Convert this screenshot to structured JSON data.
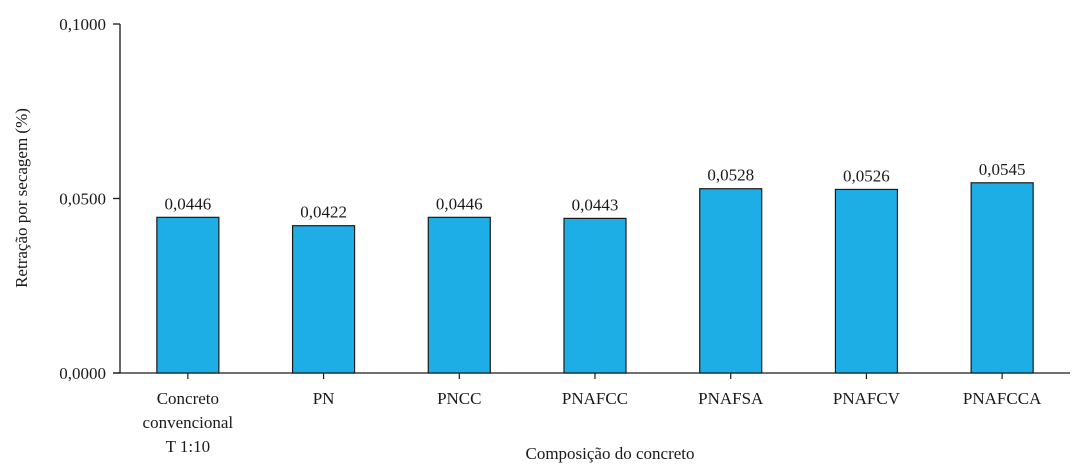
{
  "chart_data": {
    "type": "bar",
    "title": "",
    "xlabel": "Composição do concreto",
    "ylabel": "Retração por secagem (%)",
    "ylim": [
      0,
      0.1
    ],
    "yticks": [
      "0,0000",
      "0,0500",
      "0,1000"
    ],
    "ytick_values": [
      0,
      0.05,
      0.1
    ],
    "grid": false,
    "bar_color": "#1eaee6",
    "categories": [
      [
        "Concreto",
        "convencional",
        "T 1:10"
      ],
      [
        "PN"
      ],
      [
        "PNCC"
      ],
      [
        "PNAFCC"
      ],
      [
        "PNAFSA"
      ],
      [
        "PNAFCV"
      ],
      [
        "PNAFCCA"
      ]
    ],
    "values": [
      0.0446,
      0.0422,
      0.0446,
      0.0443,
      0.0528,
      0.0526,
      0.0545
    ],
    "value_labels": [
      "0,0446",
      "0,0422",
      "0,0446",
      "0,0443",
      "0,0528",
      "0,0526",
      "0,0545"
    ]
  }
}
